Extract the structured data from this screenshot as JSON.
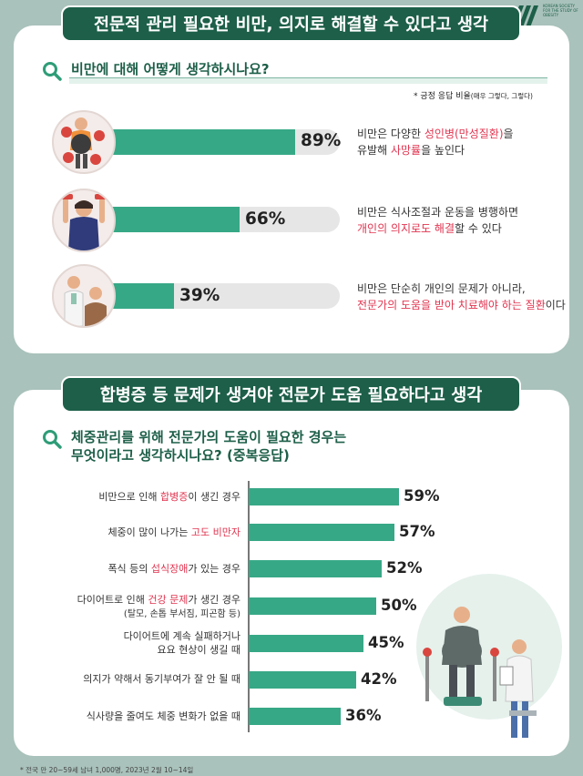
{
  "header": {
    "logo_text": "KOREAN SOCIETY FOR THE STUDY OF OBESITY",
    "section1_title": "전문적 관리 필요한 비만, 의지로 해결할 수 있다고 생각",
    "section2_title": "합병증 등 문제가 생겨야 전문가 도움 필요하다고 생각"
  },
  "section1": {
    "question": "비만에 대해 어떻게 생각하시나요?",
    "note_main": "* 긍정 응답 비율",
    "note_sub": "(매우 그렇다, 그렇다)",
    "items": [
      {
        "pct_label": "89%",
        "desc": [
          "비만은 다양한 ",
          "성인병(만성질환)",
          "을",
          "유발해 ",
          "사망률",
          "을 높인다"
        ]
      },
      {
        "pct_label": "66%",
        "desc": [
          "비만은 식사조절과 운동을 병행하면",
          "개인의 의지로도 해결",
          "할 수 있다"
        ]
      },
      {
        "pct_label": "39%",
        "desc": [
          "비만은 단순히 개인의 문제가 아니라,",
          "전문가의 도움을 받아 치료해야 하는 질환",
          "이다"
        ]
      }
    ]
  },
  "section2": {
    "question_line1": "체중관리를 위해 전문가의 도움이 필요한 경우는",
    "question_line2": "무엇이라고 생각하시나요? (중복응답)",
    "cat_parts": {
      "c0": [
        "비만으로 인해 ",
        "합병증",
        "이 생긴 경우"
      ],
      "c1": [
        "체중이 많이 나가는 ",
        "고도 비만자"
      ],
      "c2": [
        "폭식 등의 ",
        "섭식장애",
        "가 있는 경우"
      ],
      "c3": [
        "다이어트로 인해 ",
        "건강 문제",
        "가 생긴 경우",
        "(탈모, 손톱 부서짐, 피곤함 등)"
      ],
      "c4": [
        "다이어트에 계속 실패하거나",
        "요요 현상이 생길 때"
      ],
      "c5": [
        "의지가 약해서 동기부여가 잘 안 될 때"
      ],
      "c6": [
        "식사량을 줄여도 체중 변화가 없을 때"
      ]
    }
  },
  "footnote": "* 전국 만 20~59세 남녀 1,000명, 2023년 2월 10~14일",
  "colors": {
    "accent": "#1d5f49",
    "bar": "#37a886",
    "highlight": "#e0344f",
    "background": "#a9c2bb"
  },
  "chart_data": [
    {
      "type": "bar",
      "title": "비만에 대해 어떻게 생각하시나요?",
      "categories": [
        "비만은 다양한 성인병(만성질환)을 유발해 사망률을 높인다",
        "비만은 식사조절과 운동을 병행하면 개인의 의지로도 해결할 수 있다",
        "비만은 단순히 개인의 문제가 아니라, 전문가의 도움을 받아 치료해야 하는 질환이다"
      ],
      "values": [
        89,
        66,
        39
      ],
      "unit": "%",
      "ylim": [
        0,
        100
      ]
    },
    {
      "type": "bar",
      "title": "체중관리를 위해 전문가의 도움이 필요한 경우는 무엇이라고 생각하시나요? (중복응답)",
      "categories": [
        "비만으로 인해 합병증이 생긴 경우",
        "체중이 많이 나가는 고도 비만자",
        "폭식 등의 섭식장애가 있는 경우",
        "다이어트로 인해 건강 문제가 생긴 경우 (탈모, 손톱 부서짐, 피곤함 등)",
        "다이어트에 계속 실패하거나 요요 현상이 생길 때",
        "의지가 약해서 동기부여가 잘 안 될 때",
        "식사량을 줄여도 체중 변화가 없을 때"
      ],
      "values": [
        59,
        57,
        52,
        50,
        45,
        42,
        36
      ],
      "value_labels": [
        "59%",
        "57%",
        "52%",
        "50%",
        "45%",
        "42%",
        "36%"
      ],
      "unit": "%",
      "ylim": [
        0,
        100
      ]
    }
  ]
}
